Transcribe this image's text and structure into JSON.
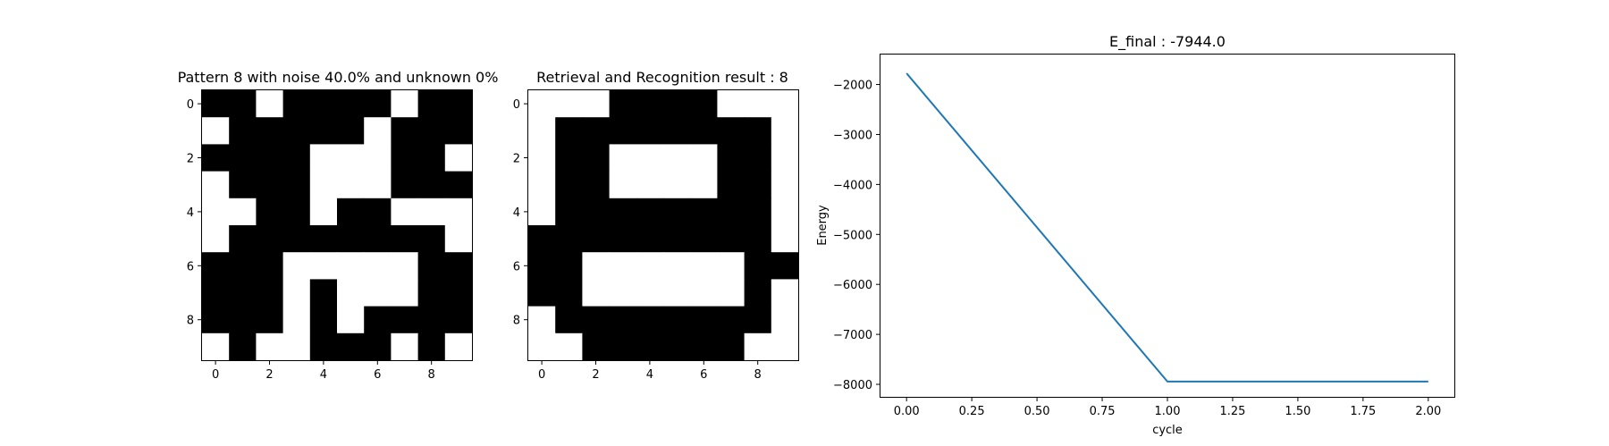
{
  "chart_data": [
    {
      "type": "heatmap",
      "title": "Pattern 8 with noise 40.0% and unknown 0%",
      "colormap": {
        "0": "#ffffff",
        "1": "#000000"
      },
      "xticks": [
        0,
        2,
        4,
        6,
        8
      ],
      "yticks": [
        0,
        2,
        4,
        6,
        8
      ],
      "grid": [
        [
          1,
          1,
          0,
          1,
          1,
          1,
          1,
          0,
          1,
          1
        ],
        [
          0,
          1,
          1,
          1,
          1,
          1,
          0,
          1,
          1,
          1
        ],
        [
          1,
          1,
          1,
          1,
          0,
          0,
          0,
          1,
          1,
          0
        ],
        [
          0,
          1,
          1,
          1,
          0,
          0,
          0,
          1,
          1,
          1
        ],
        [
          0,
          0,
          1,
          1,
          0,
          1,
          1,
          0,
          0,
          0
        ],
        [
          0,
          1,
          1,
          1,
          1,
          1,
          1,
          1,
          1,
          0
        ],
        [
          1,
          1,
          1,
          0,
          0,
          0,
          0,
          0,
          1,
          1
        ],
        [
          1,
          1,
          1,
          0,
          1,
          0,
          0,
          0,
          1,
          1
        ],
        [
          1,
          1,
          1,
          0,
          1,
          0,
          1,
          1,
          1,
          1
        ],
        [
          0,
          1,
          0,
          0,
          1,
          1,
          1,
          0,
          1,
          0
        ]
      ]
    },
    {
      "type": "heatmap",
      "title": "Retrieval and Recognition result : 8",
      "colormap": {
        "0": "#ffffff",
        "1": "#000000"
      },
      "xticks": [
        0,
        2,
        4,
        6,
        8
      ],
      "yticks": [
        0,
        2,
        4,
        6,
        8
      ],
      "grid": [
        [
          0,
          0,
          0,
          1,
          1,
          1,
          1,
          0,
          0,
          0
        ],
        [
          0,
          1,
          1,
          1,
          1,
          1,
          1,
          1,
          1,
          0
        ],
        [
          0,
          1,
          1,
          0,
          0,
          0,
          0,
          1,
          1,
          0
        ],
        [
          0,
          1,
          1,
          0,
          0,
          0,
          0,
          1,
          1,
          0
        ],
        [
          0,
          1,
          1,
          1,
          1,
          1,
          1,
          1,
          1,
          0
        ],
        [
          1,
          1,
          1,
          1,
          1,
          1,
          1,
          1,
          1,
          0
        ],
        [
          1,
          1,
          0,
          0,
          0,
          0,
          0,
          0,
          1,
          1
        ],
        [
          1,
          1,
          0,
          0,
          0,
          0,
          0,
          0,
          1,
          0
        ],
        [
          0,
          1,
          1,
          1,
          1,
          1,
          1,
          1,
          1,
          0
        ],
        [
          0,
          0,
          1,
          1,
          1,
          1,
          1,
          1,
          0,
          0
        ]
      ]
    },
    {
      "type": "line",
      "title": "E_final : -7944.0",
      "xlabel": "cycle",
      "ylabel": "Energy",
      "x": [
        0,
        1,
        2
      ],
      "series": [
        {
          "values": [
            -1776,
            -7944,
            -7944
          ],
          "color": "#1f77b4"
        }
      ],
      "xlim": [
        -0.1,
        2.1
      ],
      "ylim": [
        -8250,
        -1400
      ],
      "xticks": [
        0.0,
        0.25,
        0.5,
        0.75,
        1.0,
        1.25,
        1.5,
        1.75,
        2.0
      ],
      "xticklabels": [
        "0.00",
        "0.25",
        "0.50",
        "0.75",
        "1.00",
        "1.25",
        "1.50",
        "1.75",
        "2.00"
      ],
      "yticks": [
        -2000,
        -3000,
        -4000,
        -5000,
        -6000,
        -7000,
        -8000
      ],
      "yticklabels": [
        "−2000",
        "−3000",
        "−4000",
        "−5000",
        "−6000",
        "−7000",
        "−8000"
      ],
      "grid": false
    }
  ]
}
